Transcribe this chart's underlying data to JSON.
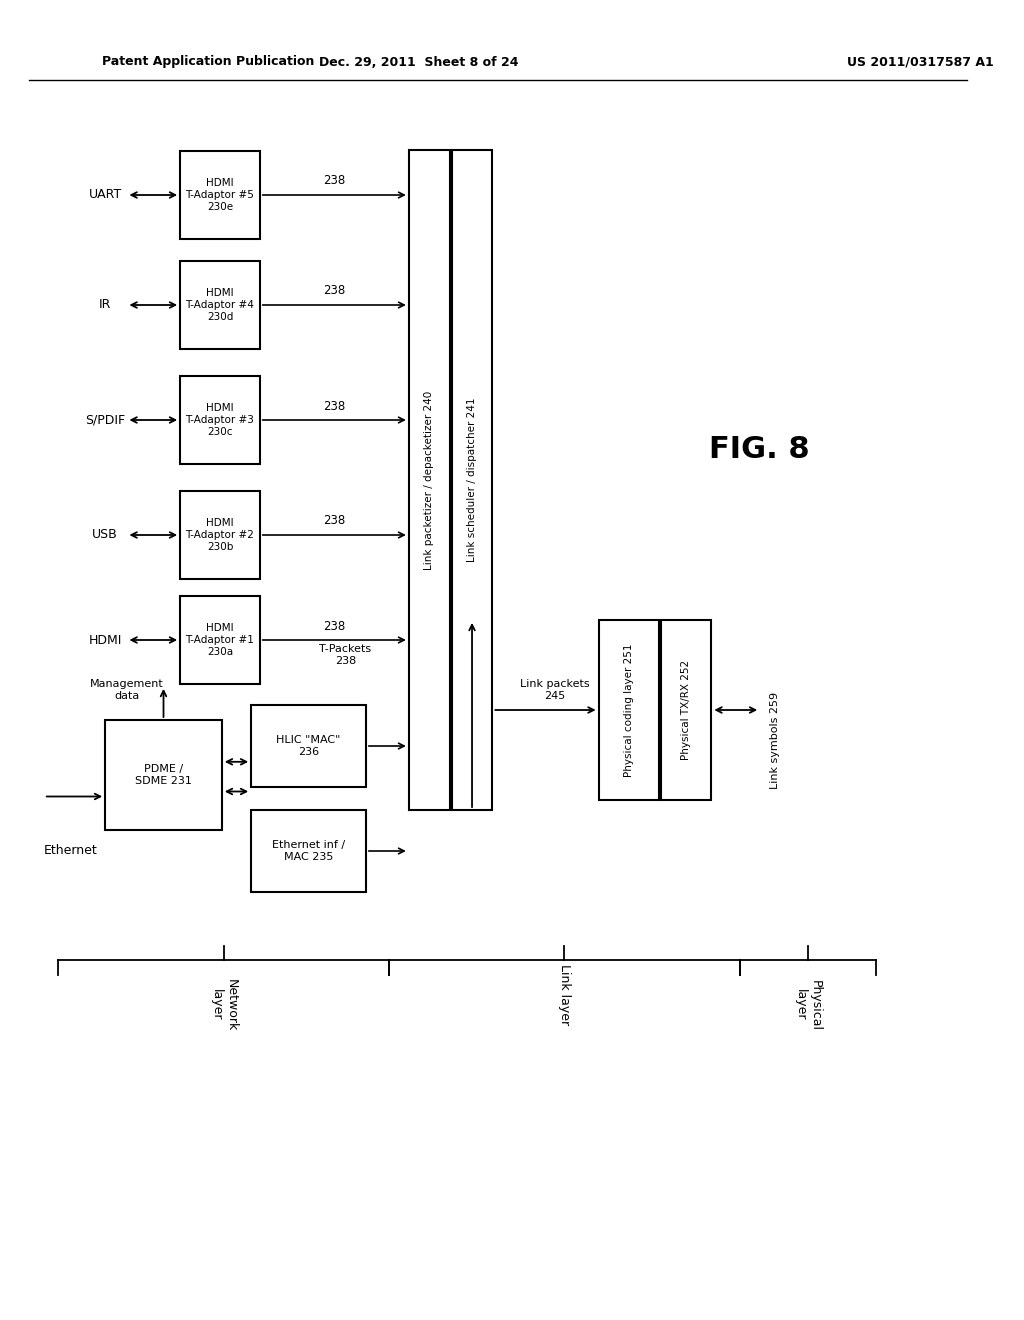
{
  "header_left": "Patent Application Publication",
  "header_mid": "Dec. 29, 2011  Sheet 8 of 24",
  "header_right": "US 2011/0317587 A1",
  "fig_label": "FIG. 8",
  "bg_color": "#ffffff"
}
